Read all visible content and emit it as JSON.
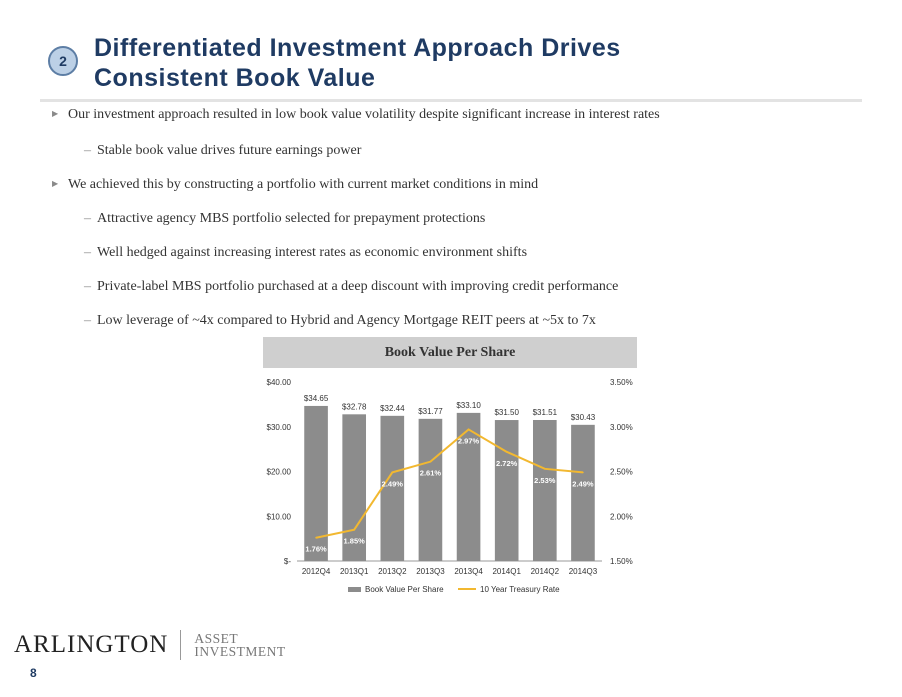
{
  "slide": {
    "number_badge": "2",
    "title_line1": "Differentiated Investment Approach Drives",
    "title_line2": "Consistent Book Value",
    "page_number": "8"
  },
  "bullets": [
    {
      "text": "Our investment approach resulted in low book value volatility despite significant increase in interest rates",
      "subs": [
        "Stable book value drives future earnings power"
      ]
    },
    {
      "text": "We achieved this by constructing a portfolio with current market conditions in mind",
      "subs": [
        "Attractive agency MBS portfolio selected for prepayment protections",
        "Well hedged against increasing interest rates as economic environment shifts",
        "Private-label MBS portfolio purchased at a deep discount with improving  credit performance",
        "Low leverage of ~4x compared to Hybrid and Agency Mortgage REIT peers at ~5x to 7x"
      ]
    }
  ],
  "logo": {
    "main": "ARLINGTON",
    "sub_line1": "ASSET",
    "sub_line2": "INVESTMENT"
  },
  "colors": {
    "title": "#1f3b63",
    "bar": "#8c8c8c",
    "line": "#f2b830",
    "header_bg": "#cfcfcf"
  },
  "chart_data": {
    "type": "bar",
    "title": "Book Value Per Share",
    "categories": [
      "2012Q4",
      "2013Q1",
      "2013Q2",
      "2013Q3",
      "2013Q4",
      "2014Q1",
      "2014Q2",
      "2014Q3"
    ],
    "series": [
      {
        "name": "Book Value Per Share",
        "type": "bar",
        "axis": "left",
        "values": [
          34.65,
          32.78,
          32.44,
          31.77,
          33.1,
          31.5,
          31.51,
          30.43
        ],
        "labels": [
          "$34.65",
          "$32.78",
          "$32.44",
          "$31.77",
          "$33.10",
          "$31.50",
          "$31.51",
          "$30.43"
        ]
      },
      {
        "name": "10 Year Treasury Rate",
        "type": "line",
        "axis": "right",
        "values": [
          1.76,
          1.85,
          2.49,
          2.61,
          2.97,
          2.72,
          2.53,
          2.49
        ],
        "labels": [
          "1.76%",
          "1.85%",
          "2.49%",
          "2.61%",
          "2.97%",
          "2.72%",
          "2.53%",
          "2.49%"
        ]
      }
    ],
    "ylim_left": [
      0,
      40
    ],
    "yticks_left": [
      "$-",
      "$10.00",
      "$20.00",
      "$30.00",
      "$40.00"
    ],
    "ylim_right": [
      1.5,
      3.5
    ],
    "yticks_right": [
      "1.50%",
      "2.00%",
      "2.50%",
      "3.00%",
      "3.50%"
    ],
    "grid": false,
    "legend": "bottom"
  }
}
